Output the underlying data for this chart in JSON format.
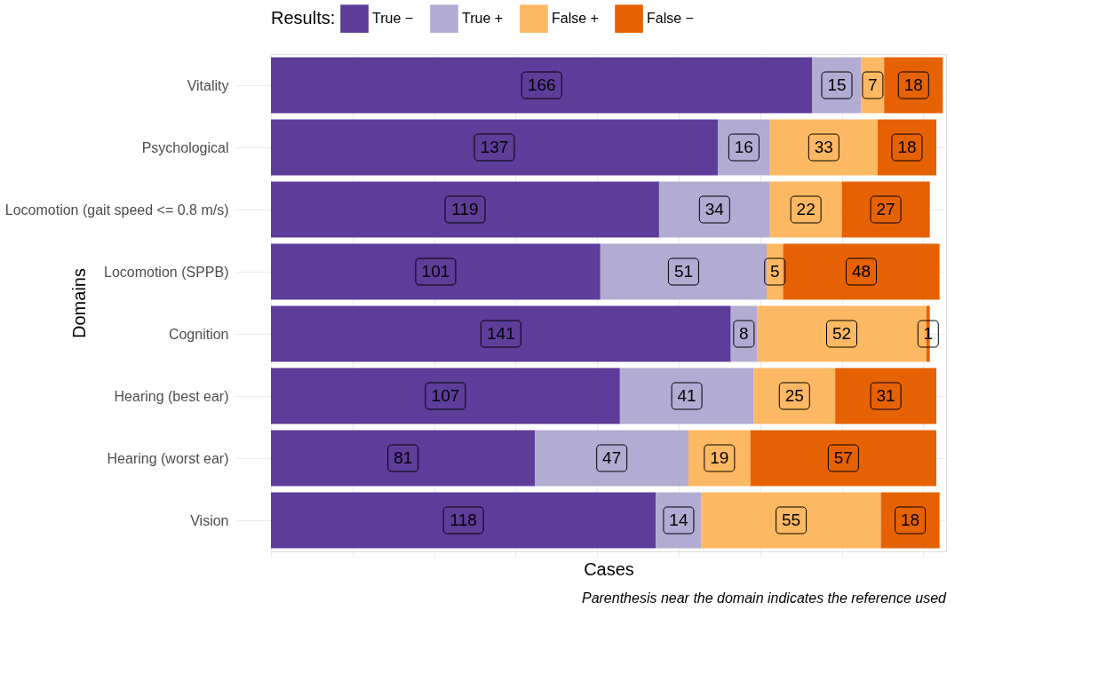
{
  "chart_data": {
    "type": "bar",
    "orientation": "horizontal",
    "stacked": true,
    "xlabel": "Cases",
    "ylabel": "Domains",
    "legend_title": "Results:",
    "categories": [
      "Vitality",
      "Psychological",
      "Locomotion (gait speed <= 0.8 m/s)",
      "Locomotion (SPPB)",
      "Cognition",
      "Hearing (best ear)",
      "Hearing (worst ear)",
      "Vision"
    ],
    "series": [
      {
        "name": "True −",
        "color": "#5e3c99",
        "values": [
          166,
          137,
          119,
          101,
          141,
          107,
          81,
          118
        ]
      },
      {
        "name": "True +",
        "color": "#b2abd2",
        "values": [
          15,
          16,
          34,
          51,
          8,
          41,
          47,
          14
        ]
      },
      {
        "name": "False +",
        "color": "#fdb863",
        "values": [
          7,
          33,
          22,
          5,
          52,
          25,
          19,
          55
        ]
      },
      {
        "name": "False −",
        "color": "#e66101",
        "values": [
          18,
          18,
          27,
          48,
          1,
          31,
          57,
          18
        ]
      }
    ],
    "xlim": [
      0,
      207
    ],
    "xticks": [
      {
        "value": 0,
        "label": null
      },
      {
        "value": 25,
        "label": null
      },
      {
        "value": 50,
        "label": null
      },
      {
        "value": 75,
        "label": null
      },
      {
        "value": 100,
        "label": null
      },
      {
        "value": 125,
        "label": null
      },
      {
        "value": 150,
        "label": null
      },
      {
        "value": 175,
        "label": null
      },
      {
        "value": 200,
        "label": null
      }
    ],
    "tick_labels": "y",
    "grid": true,
    "legend": "top",
    "data_labels": true,
    "annotations": [
      "Parenthesis near the domain indicates the reference used"
    ]
  }
}
